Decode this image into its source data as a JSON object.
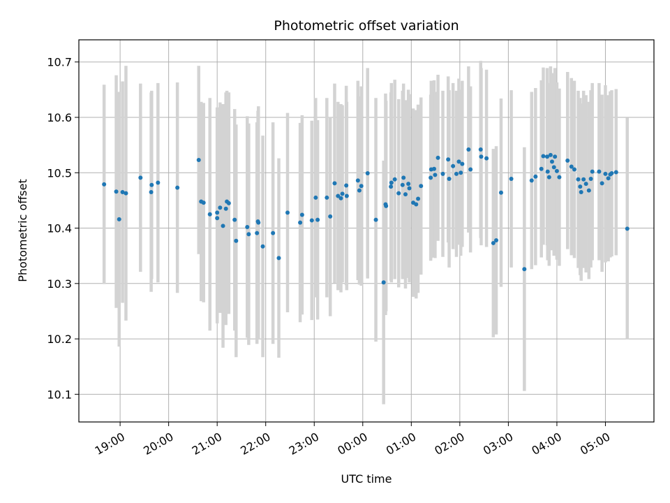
{
  "chart_data": {
    "type": "scatter",
    "title": "Photometric offset variation",
    "xlabel": "UTC time",
    "ylabel": "Photometric offset",
    "x_unit": "hours",
    "xlim": [
      -0.85,
      11.0
    ],
    "ylim": [
      10.05,
      10.74
    ],
    "grid": true,
    "x_ticks": [
      {
        "value": 0,
        "label": "19:00"
      },
      {
        "value": 1,
        "label": "20:00"
      },
      {
        "value": 2,
        "label": "21:00"
      },
      {
        "value": 3,
        "label": "22:00"
      },
      {
        "value": 4,
        "label": "23:00"
      },
      {
        "value": 5,
        "label": "00:00"
      },
      {
        "value": 6,
        "label": "01:00"
      },
      {
        "value": 7,
        "label": "02:00"
      },
      {
        "value": 8,
        "label": "03:00"
      },
      {
        "value": 9,
        "label": "04:00"
      },
      {
        "value": 10,
        "label": "05:00"
      }
    ],
    "y_ticks": [
      {
        "value": 10.1,
        "label": "10.1"
      },
      {
        "value": 10.2,
        "label": "10.2"
      },
      {
        "value": 10.3,
        "label": "10.3"
      },
      {
        "value": 10.4,
        "label": "10.4"
      },
      {
        "value": 10.5,
        "label": "10.5"
      },
      {
        "value": 10.6,
        "label": "10.6"
      },
      {
        "value": 10.7,
        "label": "10.7"
      }
    ],
    "colors": {
      "points": "#1f77b4",
      "error_bars": "#d3d3d3",
      "grid": "#b0b0b0"
    },
    "points": [
      [
        -0.33,
        10.479,
        0.18
      ],
      [
        -0.08,
        10.466,
        0.21
      ],
      [
        -0.02,
        10.416,
        0.23
      ],
      [
        0.05,
        10.465,
        0.2
      ],
      [
        0.12,
        10.463,
        0.23
      ],
      [
        0.42,
        10.491,
        0.17
      ],
      [
        0.65,
        10.478,
        0.17
      ],
      [
        0.64,
        10.465,
        0.18
      ],
      [
        0.78,
        10.482,
        0.18
      ],
      [
        1.18,
        10.473,
        0.19
      ],
      [
        1.62,
        10.523,
        0.17
      ],
      [
        1.67,
        10.448,
        0.18
      ],
      [
        1.72,
        10.446,
        0.18
      ],
      [
        1.85,
        10.425,
        0.21
      ],
      [
        2.0,
        10.428,
        0.19
      ],
      [
        2.0,
        10.418,
        0.19
      ],
      [
        2.06,
        10.437,
        0.19
      ],
      [
        2.12,
        10.404,
        0.22
      ],
      [
        2.18,
        10.435,
        0.21
      ],
      [
        2.2,
        10.448,
        0.2
      ],
      [
        2.24,
        10.445,
        0.2
      ],
      [
        2.36,
        10.415,
        0.2
      ],
      [
        2.39,
        10.377,
        0.21
      ],
      [
        2.62,
        10.402,
        0.2
      ],
      [
        2.65,
        10.389,
        0.2
      ],
      [
        2.82,
        10.391,
        0.2
      ],
      [
        2.84,
        10.412,
        0.2
      ],
      [
        2.85,
        10.41,
        0.21
      ],
      [
        2.94,
        10.367,
        0.2
      ],
      [
        3.15,
        10.391,
        0.2
      ],
      [
        3.27,
        10.346,
        0.18
      ],
      [
        3.45,
        10.428,
        0.18
      ],
      [
        3.71,
        10.41,
        0.18
      ],
      [
        3.75,
        10.424,
        0.18
      ],
      [
        3.95,
        10.414,
        0.18
      ],
      [
        4.03,
        10.455,
        0.18
      ],
      [
        4.07,
        10.415,
        0.18
      ],
      [
        4.26,
        10.455,
        0.18
      ],
      [
        4.33,
        10.421,
        0.18
      ],
      [
        4.42,
        10.481,
        0.18
      ],
      [
        4.49,
        10.458,
        0.17
      ],
      [
        4.55,
        10.454,
        0.17
      ],
      [
        4.58,
        10.462,
        0.16
      ],
      [
        4.66,
        10.477,
        0.18
      ],
      [
        4.67,
        10.458,
        0.17
      ],
      [
        4.9,
        10.486,
        0.18
      ],
      [
        4.93,
        10.468,
        0.17
      ],
      [
        4.97,
        10.476,
        0.18
      ],
      [
        5.1,
        10.499,
        0.19
      ],
      [
        5.27,
        10.415,
        0.22
      ],
      [
        5.43,
        10.302,
        0.22
      ],
      [
        5.47,
        10.443,
        0.2
      ],
      [
        5.48,
        10.44,
        0.19
      ],
      [
        5.58,
        10.475,
        0.17
      ],
      [
        5.59,
        10.482,
        0.18
      ],
      [
        5.66,
        10.488,
        0.18
      ],
      [
        5.74,
        10.463,
        0.17
      ],
      [
        5.82,
        10.478,
        0.17
      ],
      [
        5.84,
        10.491,
        0.17
      ],
      [
        5.88,
        10.461,
        0.17
      ],
      [
        5.94,
        10.48,
        0.17
      ],
      [
        5.96,
        10.472,
        0.17
      ],
      [
        6.04,
        10.446,
        0.17
      ],
      [
        6.1,
        10.443,
        0.17
      ],
      [
        6.14,
        10.453,
        0.17
      ],
      [
        6.2,
        10.476,
        0.16
      ],
      [
        6.4,
        10.491,
        0.15
      ],
      [
        6.41,
        10.506,
        0.16
      ],
      [
        6.47,
        10.507,
        0.16
      ],
      [
        6.49,
        10.496,
        0.15
      ],
      [
        6.55,
        10.527,
        0.15
      ],
      [
        6.65,
        10.498,
        0.15
      ],
      [
        6.76,
        10.524,
        0.15
      ],
      [
        6.78,
        10.489,
        0.16
      ],
      [
        6.86,
        10.512,
        0.15
      ],
      [
        6.93,
        10.498,
        0.15
      ],
      [
        6.98,
        10.52,
        0.15
      ],
      [
        7.02,
        10.5,
        0.15
      ],
      [
        7.05,
        10.516,
        0.15
      ],
      [
        7.18,
        10.542,
        0.15
      ],
      [
        7.22,
        10.506,
        0.15
      ],
      [
        7.43,
        10.542,
        0.16
      ],
      [
        7.44,
        10.529,
        0.16
      ],
      [
        7.55,
        10.526,
        0.16
      ],
      [
        7.69,
        10.373,
        0.17
      ],
      [
        7.75,
        10.378,
        0.17
      ],
      [
        7.85,
        10.464,
        0.17
      ],
      [
        8.06,
        10.489,
        0.16
      ],
      [
        8.33,
        10.326,
        0.22
      ],
      [
        8.48,
        10.486,
        0.16
      ],
      [
        8.56,
        10.493,
        0.16
      ],
      [
        8.68,
        10.507,
        0.16
      ],
      [
        8.72,
        10.53,
        0.16
      ],
      [
        8.8,
        10.529,
        0.16
      ],
      [
        8.81,
        10.502,
        0.16
      ],
      [
        8.84,
        10.492,
        0.16
      ],
      [
        8.87,
        10.532,
        0.16
      ],
      [
        8.9,
        10.52,
        0.16
      ],
      [
        8.94,
        10.51,
        0.16
      ],
      [
        8.96,
        10.529,
        0.16
      ],
      [
        9.0,
        10.503,
        0.16
      ],
      [
        9.05,
        10.492,
        0.16
      ],
      [
        9.22,
        10.522,
        0.16
      ],
      [
        9.3,
        10.511,
        0.16
      ],
      [
        9.36,
        10.506,
        0.16
      ],
      [
        9.44,
        10.488,
        0.16
      ],
      [
        9.48,
        10.475,
        0.16
      ],
      [
        9.5,
        10.465,
        0.16
      ],
      [
        9.55,
        10.488,
        0.16
      ],
      [
        9.6,
        10.48,
        0.16
      ],
      [
        9.66,
        10.468,
        0.16
      ],
      [
        9.7,
        10.489,
        0.16
      ],
      [
        9.73,
        10.502,
        0.16
      ],
      [
        9.87,
        10.502,
        0.16
      ],
      [
        9.93,
        10.481,
        0.16
      ],
      [
        10.0,
        10.498,
        0.16
      ],
      [
        10.06,
        10.49,
        0.15
      ],
      [
        10.1,
        10.497,
        0.15
      ],
      [
        10.13,
        10.499,
        0.15
      ],
      [
        10.22,
        10.501,
        0.15
      ],
      [
        10.45,
        10.399,
        0.2
      ]
    ]
  }
}
